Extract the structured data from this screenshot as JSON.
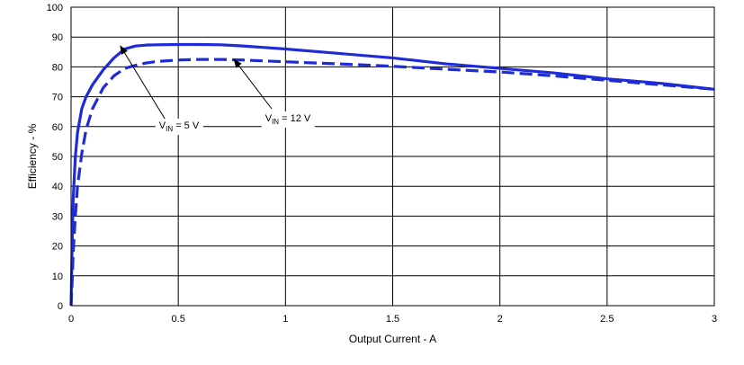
{
  "chart_data": {
    "type": "line",
    "title": "",
    "xlabel": "Output Current - A",
    "ylabel": "Efficiency - %",
    "xlim": [
      0,
      3
    ],
    "ylim": [
      0,
      100
    ],
    "x_ticks": [
      0,
      0.5,
      1,
      1.5,
      2,
      2.5,
      3
    ],
    "y_ticks": [
      0,
      10,
      20,
      30,
      40,
      50,
      60,
      70,
      80,
      90,
      100
    ],
    "x_tick_labels": [
      "0",
      "0.5",
      "1",
      "1.5",
      "2",
      "2.5",
      "3"
    ],
    "y_tick_labels": [
      "0",
      "10",
      "20",
      "30",
      "40",
      "50",
      "60",
      "70",
      "80",
      "90",
      "100"
    ],
    "grid": true,
    "series": [
      {
        "name": "VIN = 5 V",
        "style": "solid",
        "color": "#1f2bd6",
        "x": [
          0,
          0.005,
          0.01,
          0.02,
          0.03,
          0.05,
          0.07,
          0.1,
          0.15,
          0.2,
          0.25,
          0.3,
          0.35,
          0.4,
          0.5,
          0.6,
          0.7,
          0.8,
          0.9,
          1.0,
          1.25,
          1.5,
          1.75,
          2.0,
          2.25,
          2.5,
          2.75,
          3.0
        ],
        "y": [
          0,
          20,
          36,
          50,
          58,
          66,
          70,
          74,
          79,
          83,
          86,
          87,
          87.3,
          87.4,
          87.5,
          87.5,
          87.4,
          87,
          86.5,
          86,
          84.5,
          83,
          81,
          79.5,
          78,
          76,
          74.5,
          72.5
        ]
      },
      {
        "name": "VIN = 12 V",
        "style": "dashed",
        "color": "#1f2bd6",
        "x": [
          0,
          0.005,
          0.01,
          0.02,
          0.03,
          0.05,
          0.07,
          0.1,
          0.15,
          0.2,
          0.25,
          0.3,
          0.35,
          0.4,
          0.5,
          0.6,
          0.7,
          0.8,
          0.9,
          1.0,
          1.25,
          1.5,
          1.75,
          2.0,
          2.25,
          2.5,
          2.75,
          3.0
        ],
        "y": [
          0,
          8,
          18,
          30,
          40,
          51,
          59,
          66,
          73,
          77,
          79.5,
          80.5,
          81.3,
          81.8,
          82.3,
          82.5,
          82.5,
          82.3,
          82,
          81.7,
          81,
          80.2,
          79.2,
          78.3,
          77,
          75.5,
          74,
          72.5
        ]
      }
    ],
    "annotations": [
      {
        "main": "V",
        "sub": "IN",
        "rest": " = 5 V",
        "target_x": 0.23,
        "target_y": 87
      },
      {
        "main": "V",
        "sub": "IN",
        "rest": " = 12 V",
        "target_x": 0.76,
        "target_y": 82.5
      }
    ],
    "legend": "none"
  }
}
